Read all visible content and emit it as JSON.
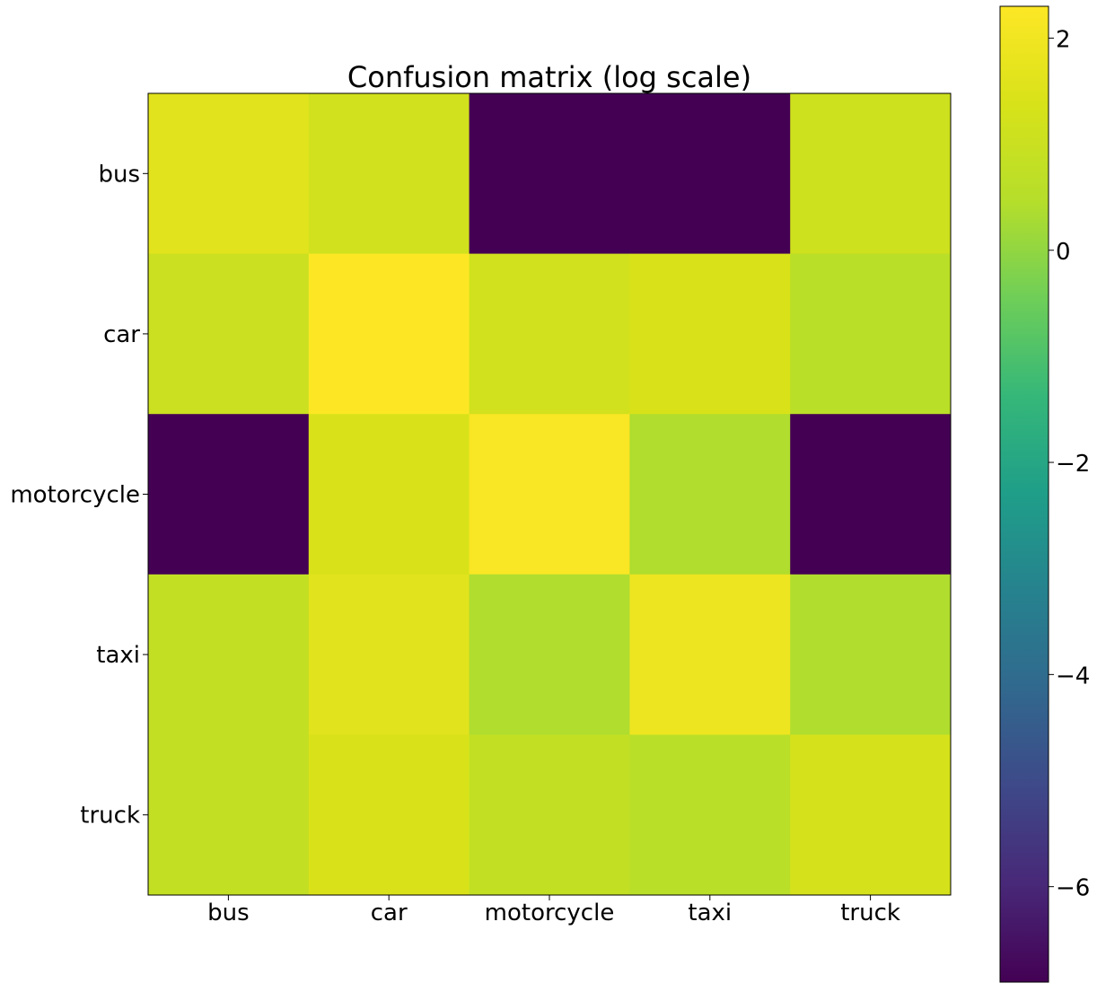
{
  "chart_data": {
    "type": "heatmap",
    "title": "Confusion matrix (log scale)",
    "xlabel": "",
    "ylabel": "",
    "x_categories": [
      "bus",
      "car",
      "motorcycle",
      "taxi",
      "truck"
    ],
    "y_categories": [
      "bus",
      "car",
      "motorcycle",
      "taxi",
      "truck"
    ],
    "values": [
      [
        1.6,
        1.2,
        -6.9,
        -6.9,
        1.1
      ],
      [
        1.0,
        2.3,
        1.2,
        1.4,
        0.6
      ],
      [
        -6.9,
        1.4,
        2.2,
        0.4,
        -6.9
      ],
      [
        0.8,
        1.6,
        0.4,
        1.9,
        0.4
      ],
      [
        0.8,
        1.4,
        0.8,
        0.6,
        1.3
      ]
    ],
    "colorbar": {
      "min": -6.9,
      "max": 2.3,
      "ticks": [
        2,
        0,
        -2,
        -4,
        -6
      ],
      "tick_labels": [
        "2",
        "0",
        "−2",
        "−4",
        "−6"
      ],
      "colormap": "viridis"
    },
    "grid": false,
    "legend": "colorbar-right"
  }
}
